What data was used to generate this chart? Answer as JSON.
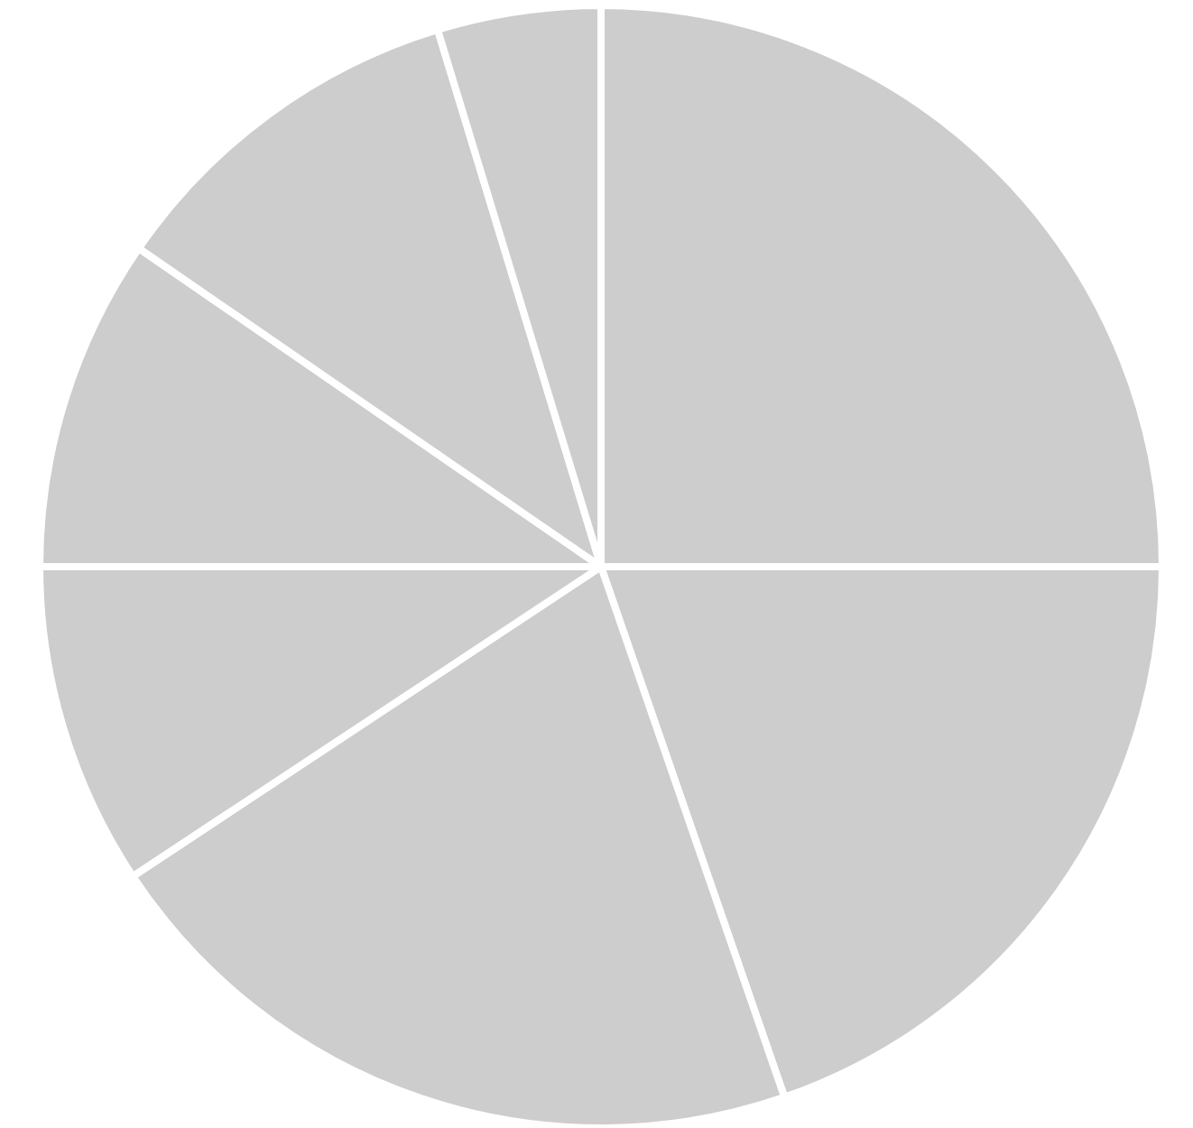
{
  "chart_data": {
    "type": "pie",
    "categories": [
      null,
      null,
      null,
      null,
      null,
      null,
      null
    ],
    "values": [
      25,
      19.7,
      21,
      9.3,
      9.6,
      10.7,
      4.7
    ],
    "colors": [
      "#cdcdcd",
      "#cdcdcd",
      "#cdcdcd",
      "#cdcdcd",
      "#cdcdcd",
      "#cdcdcd",
      "#cdcdcd"
    ]
  }
}
